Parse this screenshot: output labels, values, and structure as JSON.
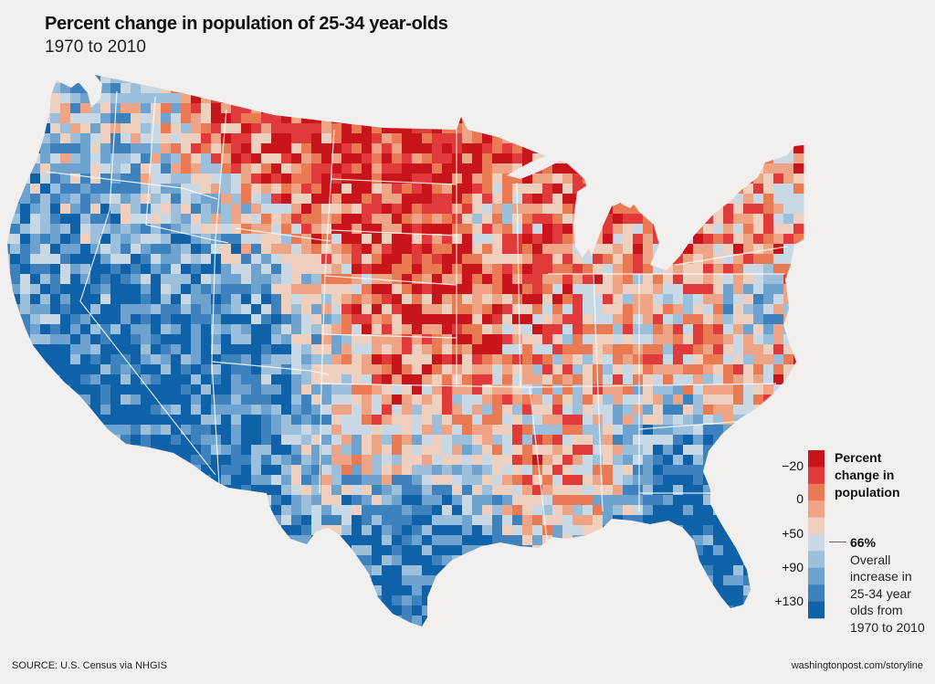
{
  "header": {
    "title": "Percent change in population of 25-34 year-olds",
    "subtitle": "1970 to 2010"
  },
  "legend": {
    "title_lines": [
      "Percent",
      "change in",
      "population"
    ],
    "bins": [
      {
        "color": "#c8141b"
      },
      {
        "color": "#e03b3a"
      },
      {
        "color": "#ea7a53"
      },
      {
        "color": "#efa585"
      },
      {
        "color": "#efcfbe"
      },
      {
        "color": "#c8d8e4"
      },
      {
        "color": "#9cbfdb"
      },
      {
        "color": "#6fa3cf"
      },
      {
        "color": "#3d82bd"
      },
      {
        "color": "#0f61a8"
      }
    ],
    "tick_labels": [
      "−20",
      "0",
      "+50",
      "+90",
      "+130"
    ],
    "overall_value": "66%",
    "overall_note_lines": [
      "Overall",
      "increase in",
      "25-34 year",
      "olds from",
      "1970 to 2010"
    ]
  },
  "footer": {
    "source": "SOURCE: U.S. Census via NHGIS",
    "credit": "washingtonpost.com/storyline"
  },
  "colors": {
    "background": "#f1f0ef",
    "land_border": "#ffffff"
  },
  "chart_data": {
    "type": "choropleth",
    "title": "Percent change in population of 25-34 year-olds",
    "subtitle": "1970 to 2010",
    "geography": "U.S. counties (contiguous states)",
    "value_label": "Percent change in population",
    "scale_ticks": [
      -20,
      0,
      50,
      90,
      130
    ],
    "overall_change_percent": 66,
    "region_tendencies": [
      {
        "region": "Great Plains (Dakotas, Nebraska, Kansas, eastern Montana)",
        "tendency": "decline (deep red)"
      },
      {
        "region": "Mountain West (Nevada, Utah, Arizona, Colorado, Idaho)",
        "tendency": "large increase (deep blue)"
      },
      {
        "region": "Florida",
        "tendency": "large increase (deep blue)"
      },
      {
        "region": "Central & South Texas",
        "tendency": "large increase (deep blue)"
      },
      {
        "region": "Northeast / Rust Belt (NY, PA, Ohio)",
        "tendency": "decline or small change (red/orange)"
      },
      {
        "region": "Mississippi Delta",
        "tendency": "decline (red)"
      },
      {
        "region": "Atlanta, Minneapolis, Washington D.C. metros",
        "tendency": "large increase (blue)"
      },
      {
        "region": "Maine (north)",
        "tendency": "decline (red)"
      }
    ]
  }
}
